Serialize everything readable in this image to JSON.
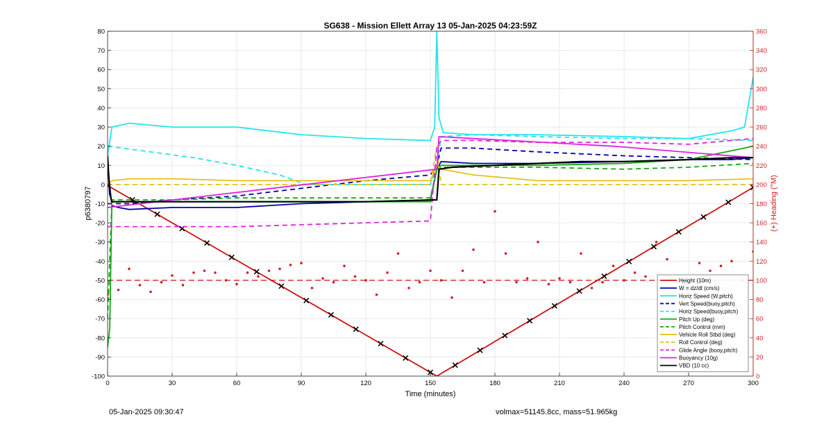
{
  "footer": {
    "timestamp": "05-Jan-2025 09:30:47",
    "mass_info": "volmax=51145.8cc, mass=51.965kg"
  },
  "chart_data": {
    "type": "line",
    "title": "SG638 - Mission Ellett Array 13 05-Jan-2025 04:23:59Z",
    "xlabel": "Time (minutes)",
    "ylabel": "p6380797",
    "y2label": "(+) Heading (°M)",
    "xlim": [
      0,
      300
    ],
    "ylim": [
      -100,
      80
    ],
    "y2lim": [
      0,
      360
    ],
    "xticks": [
      0,
      30,
      60,
      90,
      120,
      150,
      180,
      210,
      240,
      270,
      300
    ],
    "yticks": [
      -100,
      -90,
      -80,
      -70,
      -60,
      -50,
      -40,
      -30,
      -20,
      -10,
      0,
      10,
      20,
      30,
      40,
      50,
      60,
      70,
      80
    ],
    "y2ticks": [
      0,
      20,
      40,
      60,
      80,
      100,
      120,
      140,
      160,
      180,
      200,
      220,
      240,
      260,
      280,
      300,
      320,
      340,
      360
    ],
    "grid": true,
    "legend_position": "bottom-right",
    "colors": {
      "height": "#cc1111",
      "wdzdt": "#0000aa",
      "horiz": "#22e5ee",
      "pitch": "#11aa11",
      "roll": "#e2c21a",
      "glide": "#e020e0",
      "vbd": "#000000",
      "heading_axis": "#d02020"
    },
    "series": [
      {
        "name": "Height (10m)",
        "color": "#cc1111",
        "style": "solid",
        "marker": "x",
        "x": [
          0,
          153,
          300
        ],
        "y": [
          -0.5,
          -100,
          -1.5
        ]
      },
      {
        "name": "W = dz/dt (cm/s)",
        "color": "#0000aa",
        "style": "solid",
        "x": [
          0,
          2,
          5,
          10,
          30,
          60,
          90,
          120,
          150,
          153,
          155,
          170,
          200,
          240,
          270,
          290,
          300
        ],
        "y": [
          10,
          -11,
          -12,
          -13,
          -12,
          -12,
          -10,
          -9,
          -8,
          8,
          12,
          11,
          11,
          12,
          13,
          13,
          14
        ]
      },
      {
        "name": "Horiz Speed (W,pitch)",
        "color": "#22e5ee",
        "style": "solid",
        "x": [
          0,
          2,
          10,
          30,
          60,
          90,
          120,
          150,
          152,
          153,
          154,
          156,
          170,
          200,
          240,
          270,
          290,
          296,
          300
        ],
        "y": [
          15,
          30,
          32,
          30,
          30,
          26,
          24,
          23,
          30,
          80,
          35,
          27,
          26,
          26,
          25,
          24,
          28,
          30,
          56
        ]
      },
      {
        "name": "Vert Speed(buoy,pitch)",
        "color": "#0000aa",
        "style": "dashed",
        "x": [
          0,
          10,
          30,
          60,
          90,
          120,
          150,
          153,
          155,
          170,
          200,
          240,
          270,
          300
        ],
        "y": [
          -10,
          -10,
          -8,
          -6,
          -2,
          2,
          5,
          10,
          19,
          19,
          17,
          15,
          14,
          13
        ]
      },
      {
        "name": "Horiz Speed(buoy,pitch)",
        "color": "#22e5ee",
        "style": "dashed",
        "x": [
          0,
          20,
          40,
          60,
          80,
          92,
          100,
          150,
          153,
          155,
          170,
          200,
          240,
          270,
          300
        ],
        "y": [
          20,
          17,
          14,
          10,
          5,
          0,
          0,
          0,
          10,
          25,
          26,
          25,
          24,
          24,
          23
        ]
      },
      {
        "name": "Pitch Up (deg)",
        "color": "#11aa11",
        "style": "solid",
        "x": [
          0,
          1,
          2,
          4,
          10,
          30,
          60,
          90,
          120,
          150,
          153,
          155,
          170,
          200,
          240,
          270,
          300
        ],
        "y": [
          -85,
          -75,
          -9,
          -9,
          -9,
          -9,
          -9,
          -9,
          -9,
          -9,
          8,
          10,
          10,
          10,
          11,
          13,
          20
        ]
      },
      {
        "name": "Pitch Control (mm)",
        "color": "#11aa11",
        "style": "dashed",
        "x": [
          0,
          2,
          10,
          30,
          60,
          90,
          120,
          150,
          153,
          155,
          170,
          200,
          240,
          270,
          300
        ],
        "y": [
          -70,
          -8,
          -8,
          -8,
          -7,
          -7,
          -7,
          -7,
          8,
          9,
          9,
          9,
          8,
          9,
          11
        ]
      },
      {
        "name": "Vehicle Roll Stbd (deg)",
        "color": "#e2c21a",
        "style": "solid",
        "x": [
          0,
          2,
          10,
          30,
          60,
          90,
          120,
          150,
          153,
          155,
          170,
          200,
          240,
          270,
          300
        ],
        "y": [
          0,
          2,
          3,
          3,
          2,
          2,
          2,
          2,
          10,
          8,
          5,
          2,
          2,
          2,
          3
        ]
      },
      {
        "name": "Roll Control (deg)",
        "color": "#e2c21a",
        "style": "dashed",
        "x": [
          0,
          10,
          30,
          60,
          90,
          120,
          150,
          153,
          155,
          170,
          200,
          240,
          270,
          300
        ],
        "y": [
          0,
          0,
          0,
          0,
          0,
          0,
          0,
          20,
          0,
          0,
          0,
          0,
          0,
          0
        ]
      },
      {
        "name": "Glide Angle (buoy,pitch)",
        "color": "#e020e0",
        "style": "dashed",
        "x": [
          0,
          2,
          10,
          30,
          60,
          90,
          120,
          150,
          153,
          155,
          170,
          200,
          240,
          270,
          300
        ],
        "y": [
          -22,
          -22,
          -22,
          -22,
          -22,
          -21,
          -20,
          -19,
          20,
          23,
          23,
          22,
          22,
          21,
          24
        ]
      },
      {
        "name": "Buoyancy (10g)",
        "color": "#e020e0",
        "style": "solid",
        "x": [
          0,
          153,
          154,
          235,
          300
        ],
        "y": [
          -12,
          8,
          25,
          20,
          14
        ]
      },
      {
        "name": "VBD (10 cc)",
        "color": "#000000",
        "style": "solid",
        "x": [
          0,
          1,
          2,
          60,
          120,
          153,
          154,
          160,
          180,
          200,
          220,
          240,
          270,
          290,
          300
        ],
        "y": [
          15,
          -5,
          -9,
          -9,
          -9,
          -8,
          8,
          9,
          10,
          11,
          12,
          12,
          13,
          14,
          14
        ]
      }
    ],
    "heading": {
      "name": "(+) Heading (°M)",
      "color": "#d02020",
      "reference_line": 100,
      "x": [
        0,
        5,
        10,
        15,
        20,
        25,
        30,
        35,
        40,
        45,
        50,
        55,
        60,
        65,
        70,
        75,
        80,
        85,
        90,
        95,
        100,
        105,
        110,
        115,
        120,
        125,
        130,
        135,
        140,
        145,
        150,
        155,
        160,
        165,
        170,
        175,
        180,
        185,
        190,
        195,
        200,
        205,
        210,
        215,
        220,
        225,
        230,
        235,
        240,
        245,
        250,
        255,
        260,
        265,
        270,
        275,
        280,
        285,
        290,
        295,
        300
      ],
      "y": [
        85,
        90,
        112,
        95,
        88,
        98,
        105,
        95,
        108,
        110,
        108,
        100,
        96,
        108,
        104,
        110,
        112,
        116,
        118,
        92,
        102,
        98,
        115,
        104,
        100,
        85,
        108,
        128,
        92,
        98,
        110,
        100,
        82,
        110,
        132,
        98,
        172,
        128,
        98,
        102,
        140,
        96,
        102,
        98,
        128,
        92,
        98,
        115,
        100,
        108,
        104,
        140,
        122,
        98,
        94,
        118,
        110,
        115,
        120,
        100,
        130
      ]
    }
  }
}
